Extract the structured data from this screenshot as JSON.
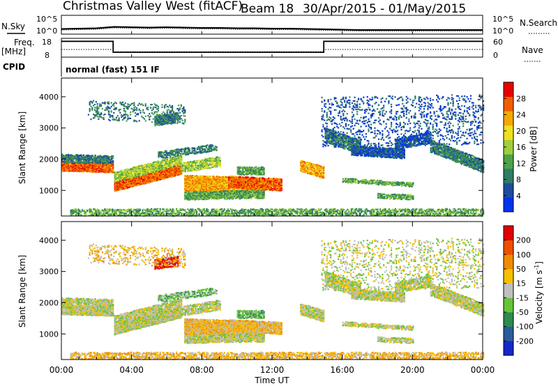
{
  "header": {
    "title": "Christmas Valley West (fitACF)",
    "beam": "Beam 18",
    "dates": "30/Apr/2015 - 01/May/2015"
  },
  "top_panels": {
    "nsky_label": "N.Sky",
    "nsearch_label": "N.Search",
    "freq_label": "Freq.",
    "freq_unit": "[MHz]",
    "nave_label": "Nave",
    "cpid_label": "CPID",
    "mode_text": "normal (fast) 151 IF",
    "noise_ticks": [
      "10^5",
      "10^0"
    ],
    "freq_ticks": [
      "18",
      "8"
    ],
    "nave_ticks": [
      "60",
      "0"
    ]
  },
  "chart_data": [
    {
      "type": "line",
      "panel": "noise",
      "x_range": [
        0,
        24
      ],
      "series": [
        {
          "x": [
            0,
            1,
            2,
            3,
            4,
            5,
            6,
            7,
            8,
            9,
            10,
            11,
            12,
            13,
            14,
            15,
            16,
            17,
            18,
            19,
            20,
            21,
            22,
            23,
            24
          ],
          "values": [
            1.3,
            1.4,
            1.5,
            1.9,
            1.8,
            1.7,
            1.8,
            1.7,
            1.6,
            1.6,
            1.5,
            1.5,
            1.4,
            1.4,
            1.3,
            1.2,
            1.1,
            1.0,
            1.0,
            1.0,
            1.0,
            1.0,
            1.0,
            1.0,
            1.0
          ]
        }
      ],
      "ylim": [
        0,
        5
      ]
    },
    {
      "type": "line",
      "panel": "freq-nave",
      "x_range": [
        0,
        24
      ],
      "freq_ylim": [
        8,
        18
      ],
      "nave_ylim": [
        0,
        60
      ],
      "series": [
        {
          "x": [
            0,
            2.95,
            2.95,
            14.95,
            14.95,
            24
          ],
          "values": [
            16.7,
            16.7,
            10.4,
            10.4,
            16.7,
            16.7
          ]
        },
        {
          "x": [
            0,
            2.95,
            2.95,
            14.95,
            14.95,
            24
          ],
          "values": [
            24,
            24,
            16,
            16,
            24,
            24
          ]
        }
      ]
    },
    {
      "type": "heatmap",
      "panel": "power",
      "xlabel": "",
      "ylabel": "Slant Range [km]",
      "x_range": [
        0,
        24
      ],
      "ylim": [
        180,
        4600
      ],
      "yticks": [
        1000,
        2000,
        3000,
        4000
      ],
      "colorbar": {
        "label": "Power [dB]",
        "ticks": [
          4,
          8,
          12,
          16,
          20,
          24,
          28
        ],
        "range": [
          0,
          32
        ],
        "colors": [
          "#0033ee",
          "#1e4c9e",
          "#2e7d67",
          "#4ea24a",
          "#9fcf3d",
          "#f0e020",
          "#f5a800",
          "#ef5f00",
          "#e80000"
        ]
      }
    },
    {
      "type": "heatmap",
      "panel": "velocity",
      "xlabel": "Time UT",
      "ylabel": "Slant Range [km]",
      "x_range": [
        0,
        24
      ],
      "ylim": [
        180,
        4600
      ],
      "yticks": [
        1000,
        2000,
        3000,
        4000
      ],
      "xticks": [
        "00:00",
        "04:00",
        "08:00",
        "12:00",
        "16:00",
        "20:00",
        "00:00"
      ],
      "colorbar": {
        "label": "Velocity [m s",
        "label_sup": "-1",
        "label_end": "]",
        "ticks": [
          "200",
          "100",
          "50",
          "15",
          "-15",
          "-50",
          "-100",
          "-200"
        ],
        "colors": [
          "#1428c8",
          "#2a5c9a",
          "#2e8a50",
          "#66c33a",
          "#bfbfbf",
          "#f5c000",
          "#f08c00",
          "#ee5000",
          "#e00000"
        ]
      }
    }
  ]
}
